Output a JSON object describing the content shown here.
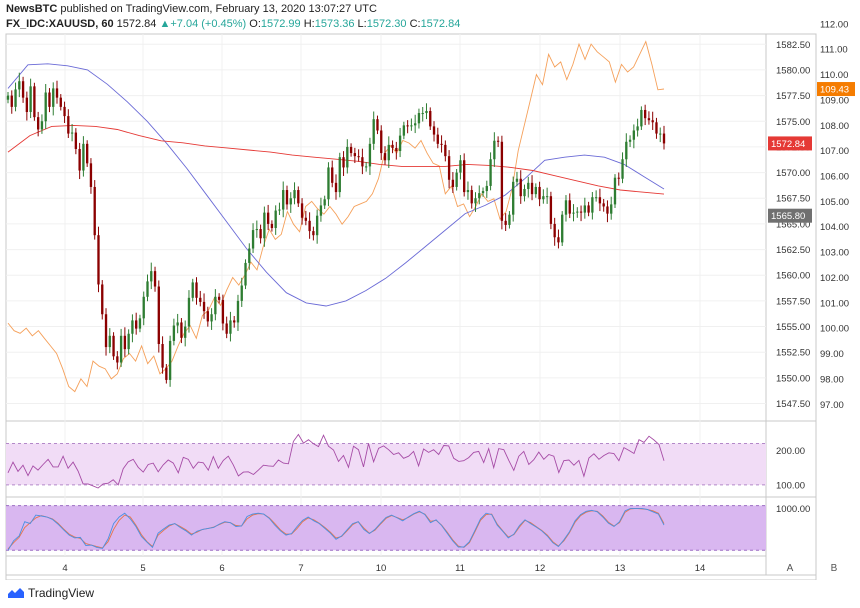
{
  "header": {
    "line1_author": "NewsBTC",
    "line1_rest": "published on TradingView.com, February 13, 2020 13:07:27 UTC",
    "symbol": "FX_IDC:XAUUSD, 60",
    "last": "1572.84",
    "change": "+7.04 (+0.45%)",
    "o_label": "O:",
    "o_val": "1572.99",
    "h_label": "H:",
    "h_val": "1573.36",
    "l_label": "L:",
    "l_val": "1572.30",
    "c_label": "C:",
    "c_val": "1572.84"
  },
  "footer": {
    "brand": "TradingView"
  },
  "panes": {
    "a_label": "A",
    "b_label": "B"
  },
  "colors": {
    "up": "#26a69a",
    "down": "#8b0000",
    "candle_up": "#2e7d32",
    "ma_fast": "#6a6ad6",
    "ma_slow": "#e53935",
    "overlay": "#f5a05a",
    "rsi": "#a64ca6",
    "band": "#f1dcf6",
    "stoch_band": "#d9b7f0",
    "stoch_k": "#4a90e2",
    "stoch_d": "#e8734a",
    "price_tag": "#e53935",
    "overlay_tag": "#f57c00",
    "hline_tag": "#707070"
  },
  "chart_data": {
    "type": "candlestick",
    "title": "FX_IDC:XAUUSD, 60",
    "x_ticks": [
      "4",
      "5",
      "6",
      "7",
      "10",
      "11",
      "12",
      "13",
      "14"
    ],
    "left_axis": {
      "ticks": [
        "1582.50",
        "1580.00",
        "1577.50",
        "1575.00",
        "1572.50",
        "1570.00",
        "1567.50",
        "1565.00",
        "1562.50",
        "1560.00",
        "1557.50",
        "1555.00",
        "1552.50",
        "1550.00",
        "1547.50"
      ],
      "range": [
        1545.8,
        1583.5
      ]
    },
    "right_axis": {
      "ticks": [
        "112.00",
        "111.00",
        "110.00",
        "109.00",
        "108.00",
        "107.00",
        "106.00",
        "105.00",
        "104.00",
        "103.00",
        "102.00",
        "101.00",
        "100.00",
        "99.00",
        "98.00",
        "97.00"
      ],
      "range": [
        96.34,
        111.6
      ]
    },
    "price_tag": "1572.84",
    "overlay_tag": "109.43",
    "hline_tag": "1565.80",
    "rsi": {
      "ticks": [
        "200.00",
        "100.00"
      ],
      "range": [
        65,
        285
      ]
    },
    "stoch": {
      "ticks": [
        "1000.00"
      ],
      "range": [
        0,
        1240
      ]
    },
    "closes": [
      1577.5,
      1576.4,
      1578.1,
      1578.9,
      1577.3,
      1575.9,
      1578.4,
      1575.4,
      1574.2,
      1575.0,
      1577.8,
      1576.4,
      1578.2,
      1577.3,
      1576.4,
      1575.5,
      1573.8,
      1573.9,
      1572.3,
      1570.2,
      1572.8,
      1570.9,
      1568.6,
      1563.9,
      1559.1,
      1556.2,
      1553.0,
      1554.1,
      1552.1,
      1551.5,
      1554.1,
      1552.8,
      1554.3,
      1555.6,
      1554.8,
      1555.8,
      1557.9,
      1559.4,
      1560.4,
      1558.9,
      1553.3,
      1551.0,
      1549.8,
      1553.6,
      1555.1,
      1555.4,
      1553.9,
      1555.0,
      1557.8,
      1559.3,
      1557.8,
      1557.4,
      1556.5,
      1555.5,
      1556.2,
      1557.9,
      1557.6,
      1555.3,
      1554.3,
      1555.6,
      1555.4,
      1557.5,
      1559.0,
      1561.2,
      1562.6,
      1564.4,
      1564.5,
      1563.6,
      1566.1,
      1565.0,
      1564.6,
      1566.3,
      1566.4,
      1568.3,
      1566.9,
      1567.5,
      1568.3,
      1567.0,
      1565.6,
      1565.3,
      1564.3,
      1563.9,
      1565.8,
      1566.8,
      1567.4,
      1570.5,
      1569.0,
      1568.1,
      1571.5,
      1570.5,
      1572.5,
      1571.9,
      1571.6,
      1571.5,
      1570.6,
      1570.6,
      1572.8,
      1575.2,
      1574.1,
      1571.9,
      1571.2,
      1572.7,
      1572.4,
      1572.1,
      1573.6,
      1574.6,
      1574.5,
      1574.6,
      1574.8,
      1575.8,
      1575.8,
      1576.0,
      1574.5,
      1573.7,
      1572.8,
      1572.7,
      1571.6,
      1569.3,
      1568.6,
      1570.0,
      1571.2,
      1568.1,
      1568.3,
      1567.0,
      1567.5,
      1568.0,
      1568.2,
      1568.7,
      1571.3,
      1573.1,
      1573.0,
      1565.3,
      1564.9,
      1565.9,
      1569.1,
      1569.4,
      1567.7,
      1568.4,
      1569.0,
      1567.9,
      1568.6,
      1567.4,
      1567.7,
      1567.7,
      1565.0,
      1563.7,
      1563.2,
      1565.9,
      1567.3,
      1566.0,
      1566.1,
      1566.2,
      1566.1,
      1566.8,
      1566.1,
      1567.6,
      1567.6,
      1567.0,
      1566.7,
      1566.0,
      1566.9,
      1569.5,
      1569.4,
      1571.3,
      1573.0,
      1573.2,
      1574.1,
      1574.5,
      1576.1,
      1575.3,
      1575.1,
      1574.9,
      1573.8,
      1573.8,
      1572.84
    ],
    "fast_ma": [
      1578.2,
      1580.5,
      1580.6,
      1580.4,
      1580.0,
      1578.6,
      1576.9,
      1575.0,
      1572.8,
      1570.4,
      1567.8,
      1565.2,
      1562.6,
      1560.3,
      1558.3,
      1557.3,
      1557.0,
      1557.5,
      1558.5,
      1559.7,
      1561.2,
      1562.8,
      1564.4,
      1566.0,
      1566.8,
      1567.8,
      1569.4,
      1571.2,
      1571.5,
      1571.7,
      1571.5,
      1570.8,
      1569.6,
      1568.4
    ],
    "slow_ma": [
      1572.0,
      1573.6,
      1574.5,
      1574.6,
      1574.5,
      1574.2,
      1573.6,
      1573.1,
      1572.9,
      1572.6,
      1572.4,
      1572.2,
      1572.0,
      1571.7,
      1571.5,
      1571.3,
      1571.1,
      1570.8,
      1570.6,
      1570.6,
      1570.6,
      1570.8,
      1570.7,
      1570.5,
      1570.2,
      1569.7,
      1569.2,
      1568.7,
      1568.3,
      1568.1,
      1567.9
    ],
    "overlay": [
      100.2,
      99.9,
      99.8,
      100.0,
      99.7,
      99.9,
      99.6,
      99.3,
      99.0,
      98.4,
      97.7,
      97.5,
      98.0,
      97.7,
      98.7,
      98.5,
      98.4,
      98.0,
      98.2,
      98.8,
      99.0,
      98.7,
      99.3,
      98.6,
      98.9,
      98.2,
      98.4,
      98.7,
      99.3,
      99.8,
      100.1,
      99.6,
      100.5,
      100.7,
      101.2,
      100.9,
      101.5,
      102.0,
      101.7,
      102.1,
      102.6,
      102.3,
      103.2,
      103.9,
      103.5,
      103.7,
      104.6,
      104.1,
      103.8,
      104.8,
      105.0,
      104.7,
      104.5,
      104.8,
      104.5,
      104.1,
      104.4,
      104.8,
      104.9,
      105.0,
      105.3,
      105.9,
      106.9,
      107.2,
      106.9,
      107.4,
      107.3,
      107.1,
      107.4,
      106.9,
      106.5,
      106.4,
      105.3,
      105.6,
      104.8,
      104.9,
      104.4,
      104.8,
      105.3,
      105.0,
      105.1,
      104.3,
      104.6,
      105.5,
      107.0,
      108.0,
      109.0,
      110.0,
      109.6,
      110.8,
      110.3,
      110.5,
      109.8,
      110.4,
      111.2,
      110.6,
      111.2,
      110.9,
      110.7,
      110.5,
      109.7,
      110.4,
      110.1,
      110.3,
      110.8,
      111.3,
      110.4,
      109.4,
      109.43
    ],
    "rsi_values": [
      135,
      166,
      139,
      157,
      127,
      155,
      143,
      159,
      174,
      152,
      152,
      183,
      148,
      166,
      140,
      103,
      103,
      97,
      91,
      103,
      105,
      115,
      100,
      147,
      167,
      174,
      151,
      137,
      159,
      163,
      138,
      158,
      172,
      163,
      135,
      180,
      174,
      148,
      166,
      164,
      143,
      182,
      148,
      171,
      183,
      158,
      126,
      137,
      138,
      130,
      143,
      157,
      155,
      154,
      172,
      163,
      161,
      226,
      246,
      221,
      231,
      219,
      211,
      244,
      212,
      201,
      168,
      185,
      151,
      212,
      202,
      152,
      220,
      167,
      206,
      213,
      202,
      188,
      193,
      177,
      183,
      197,
      155,
      204,
      194,
      202,
      188,
      214,
      213,
      177,
      168,
      170,
      179,
      194,
      197,
      165,
      205,
      150,
      205,
      202,
      171,
      142,
      183,
      197,
      159,
      173,
      195,
      174,
      188,
      183,
      136,
      170,
      172,
      157,
      171,
      125,
      178,
      190,
      174,
      185,
      193,
      191,
      170,
      208,
      200,
      191,
      231,
      223,
      241,
      230,
      217,
      170
    ],
    "stoch_k": [
      120,
      320,
      420,
      720,
      680,
      860,
      840,
      820,
      770,
      670,
      550,
      440,
      380,
      390,
      220,
      230,
      180,
      160,
      360,
      680,
      820,
      900,
      780,
      620,
      410,
      290,
      180,
      480,
      570,
      650,
      680,
      600,
      530,
      440,
      520,
      560,
      580,
      600,
      670,
      720,
      700,
      620,
      630,
      830,
      880,
      900,
      880,
      790,
      650,
      530,
      440,
      470,
      620,
      750,
      820,
      740,
      680,
      580,
      480,
      350,
      420,
      550,
      680,
      720,
      560,
      470,
      560,
      690,
      810,
      860,
      800,
      740,
      820,
      890,
      940,
      870,
      700,
      760,
      640,
      480,
      320,
      190,
      190,
      300,
      540,
      780,
      900,
      870,
      650,
      520,
      380,
      460,
      640,
      760,
      680,
      610,
      530,
      420,
      280,
      200,
      340,
      510,
      740,
      870,
      940,
      960,
      930,
      820,
      690,
      620,
      720,
      950,
      1000,
      1000,
      1000,
      980,
      930,
      880,
      650
    ],
    "stoch_d": [
      150,
      280,
      390,
      600,
      700,
      800,
      850,
      820,
      780,
      690,
      570,
      460,
      400,
      370,
      260,
      230,
      200,
      170,
      300,
      560,
      750,
      860,
      820,
      650,
      450,
      300,
      200,
      440,
      540,
      630,
      680,
      620,
      550,
      460,
      500,
      560,
      580,
      610,
      660,
      710,
      700,
      640,
      630,
      780,
      860,
      890,
      880,
      800,
      680,
      550,
      460,
      460,
      580,
      720,
      800,
      760,
      690,
      600,
      500,
      380,
      410,
      530,
      660,
      720,
      590,
      480,
      540,
      670,
      790,
      850,
      810,
      760,
      810,
      880,
      930,
      880,
      730,
      750,
      650,
      500,
      340,
      210,
      180,
      280,
      510,
      750,
      870,
      880,
      670,
      530,
      400,
      450,
      610,
      750,
      700,
      620,
      540,
      440,
      300,
      210,
      320,
      490,
      710,
      850,
      920,
      950,
      940,
      840,
      710,
      630,
      700,
      920,
      990,
      1000,
      990,
      980,
      950,
      900,
      680
    ]
  }
}
